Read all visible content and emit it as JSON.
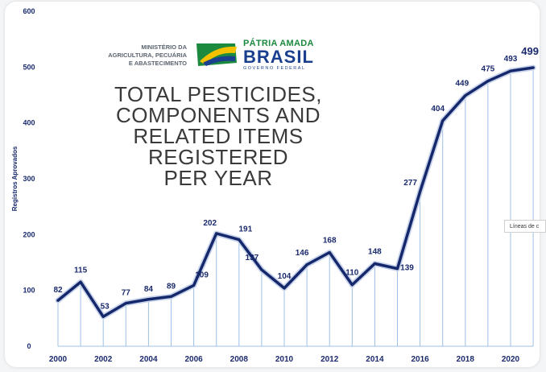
{
  "chart_data": {
    "type": "area",
    "title_lines": [
      "TOTAL PESTICIDES,",
      "COMPONENTS AND",
      "RELATED ITEMS",
      "REGISTERED",
      "PER YEAR"
    ],
    "ylabel": "Registros Aprovados",
    "xlabel": "",
    "ylim": [
      0,
      600
    ],
    "yticks": [
      0,
      100,
      200,
      300,
      400,
      500,
      600
    ],
    "xtick_labels": [
      "2000",
      "2002",
      "2004",
      "2006",
      "2008",
      "2010",
      "2012",
      "2014",
      "2016",
      "2018",
      "2020"
    ],
    "x": [
      2000,
      2001,
      2002,
      2003,
      2004,
      2005,
      2006,
      2007,
      2008,
      2009,
      2010,
      2011,
      2012,
      2013,
      2014,
      2015,
      2016,
      2017,
      2018,
      2019,
      2020,
      2021
    ],
    "values": [
      82,
      115,
      53,
      77,
      84,
      89,
      109,
      202,
      191,
      137,
      104,
      146,
      168,
      110,
      148,
      139,
      277,
      404,
      449,
      475,
      493,
      499
    ],
    "grid": false,
    "line_color": "#14286b",
    "drop_line_color": "#9cc0e6"
  },
  "logo": {
    "ministry_text": "MINISTÉRIO DA\nAGRICULTURA, PECUÁRIA\nE ABASTECIMENTO",
    "brand_line1": "PÁTRIA AMADA",
    "brand_line2": "BRASIL",
    "brand_line3": "GOVERNO FEDERAL",
    "colors": {
      "green": "#1b8a3e",
      "yellow": "#f2c200",
      "blue": "#1b3f8f"
    }
  },
  "tooltip": {
    "text": "Líneas de c"
  }
}
